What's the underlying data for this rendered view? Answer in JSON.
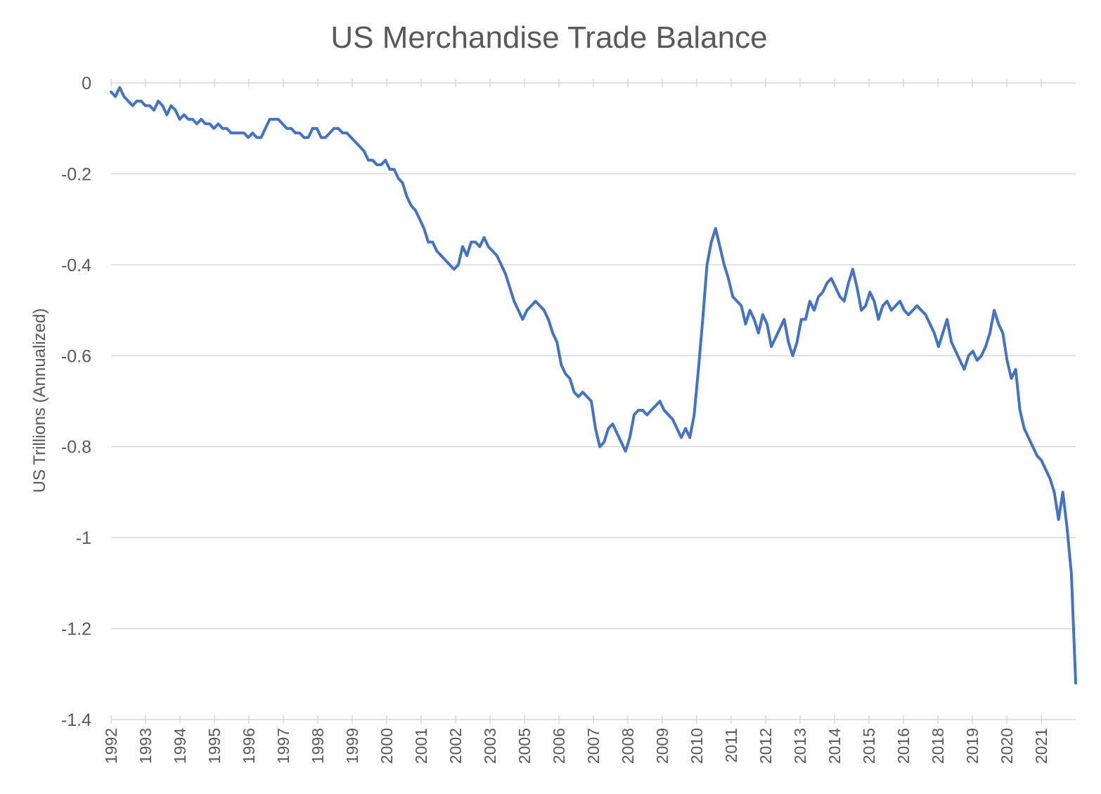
{
  "chart_data": {
    "type": "line",
    "title": "US Merchandise Trade Balance",
    "xlabel": "",
    "ylabel": "US Trillions (Annualized)",
    "ylim": [
      -1.4,
      0
    ],
    "yticks": [
      0,
      -0.2,
      -0.4,
      -0.6,
      -0.8,
      -1,
      -1.2,
      -1.4
    ],
    "ytick_labels": [
      "0",
      "-0.2",
      "-0.4",
      "-0.6",
      "-0.8",
      "-1",
      "-1.2",
      "-1.4"
    ],
    "xtick_labels": [
      "1992",
      "1993",
      "1994",
      "1995",
      "1996",
      "1997",
      "1998",
      "1999",
      "2000",
      "2001",
      "2002",
      "2003",
      "2005",
      "2006",
      "2007",
      "2008",
      "2009",
      "2010",
      "2011",
      "2012",
      "2013",
      "2014",
      "2015",
      "2016",
      "2018",
      "2019",
      "2020",
      "2021"
    ],
    "grid": true,
    "legend": "none",
    "series": [
      {
        "color": "#4472c4",
        "x_range_category_index": [
          0,
          28
        ],
        "values": [
          -0.02,
          -0.03,
          -0.01,
          -0.03,
          -0.04,
          -0.05,
          -0.04,
          -0.04,
          -0.05,
          -0.05,
          -0.06,
          -0.04,
          -0.05,
          -0.07,
          -0.05,
          -0.06,
          -0.08,
          -0.07,
          -0.08,
          -0.08,
          -0.09,
          -0.08,
          -0.09,
          -0.09,
          -0.1,
          -0.09,
          -0.1,
          -0.1,
          -0.11,
          -0.11,
          -0.11,
          -0.11,
          -0.12,
          -0.11,
          -0.12,
          -0.12,
          -0.1,
          -0.08,
          -0.08,
          -0.08,
          -0.09,
          -0.1,
          -0.1,
          -0.11,
          -0.11,
          -0.12,
          -0.12,
          -0.1,
          -0.1,
          -0.12,
          -0.12,
          -0.11,
          -0.1,
          -0.1,
          -0.11,
          -0.11,
          -0.12,
          -0.13,
          -0.14,
          -0.15,
          -0.17,
          -0.17,
          -0.18,
          -0.18,
          -0.17,
          -0.19,
          -0.19,
          -0.21,
          -0.22,
          -0.25,
          -0.27,
          -0.28,
          -0.3,
          -0.32,
          -0.35,
          -0.35,
          -0.37,
          -0.38,
          -0.39,
          -0.4,
          -0.41,
          -0.4,
          -0.36,
          -0.38,
          -0.35,
          -0.35,
          -0.36,
          -0.34,
          -0.36,
          -0.37,
          -0.38,
          -0.4,
          -0.42,
          -0.45,
          -0.48,
          -0.5,
          -0.52,
          -0.5,
          -0.49,
          -0.48,
          -0.49,
          -0.5,
          -0.52,
          -0.55,
          -0.57,
          -0.62,
          -0.64,
          -0.65,
          -0.68,
          -0.69,
          -0.68,
          -0.69,
          -0.7,
          -0.76,
          -0.8,
          -0.79,
          -0.76,
          -0.75,
          -0.77,
          -0.79,
          -0.81,
          -0.78,
          -0.73,
          -0.72,
          -0.72,
          -0.73,
          -0.72,
          -0.71,
          -0.7,
          -0.72,
          -0.73,
          -0.74,
          -0.76,
          -0.78,
          -0.76,
          -0.78,
          -0.73,
          -0.63,
          -0.52,
          -0.4,
          -0.35,
          -0.32,
          -0.36,
          -0.4,
          -0.43,
          -0.47,
          -0.48,
          -0.49,
          -0.53,
          -0.5,
          -0.52,
          -0.55,
          -0.51,
          -0.53,
          -0.58,
          -0.56,
          -0.54,
          -0.52,
          -0.57,
          -0.6,
          -0.57,
          -0.52,
          -0.52,
          -0.48,
          -0.5,
          -0.47,
          -0.46,
          -0.44,
          -0.43,
          -0.45,
          -0.47,
          -0.48,
          -0.44,
          -0.41,
          -0.45,
          -0.5,
          -0.49,
          -0.46,
          -0.48,
          -0.52,
          -0.49,
          -0.48,
          -0.5,
          -0.49,
          -0.48,
          -0.5,
          -0.51,
          -0.5,
          -0.49,
          -0.5,
          -0.51,
          -0.53,
          -0.55,
          -0.58,
          -0.55,
          -0.52,
          -0.57,
          -0.59,
          -0.61,
          -0.63,
          -0.6,
          -0.59,
          -0.61,
          -0.6,
          -0.58,
          -0.55,
          -0.5,
          -0.53,
          -0.55,
          -0.61,
          -0.65,
          -0.63,
          -0.72,
          -0.76,
          -0.78,
          -0.8,
          -0.82,
          -0.83,
          -0.85,
          -0.87,
          -0.9,
          -0.96,
          -0.9,
          -0.98,
          -1.08,
          -1.32
        ]
      }
    ]
  }
}
